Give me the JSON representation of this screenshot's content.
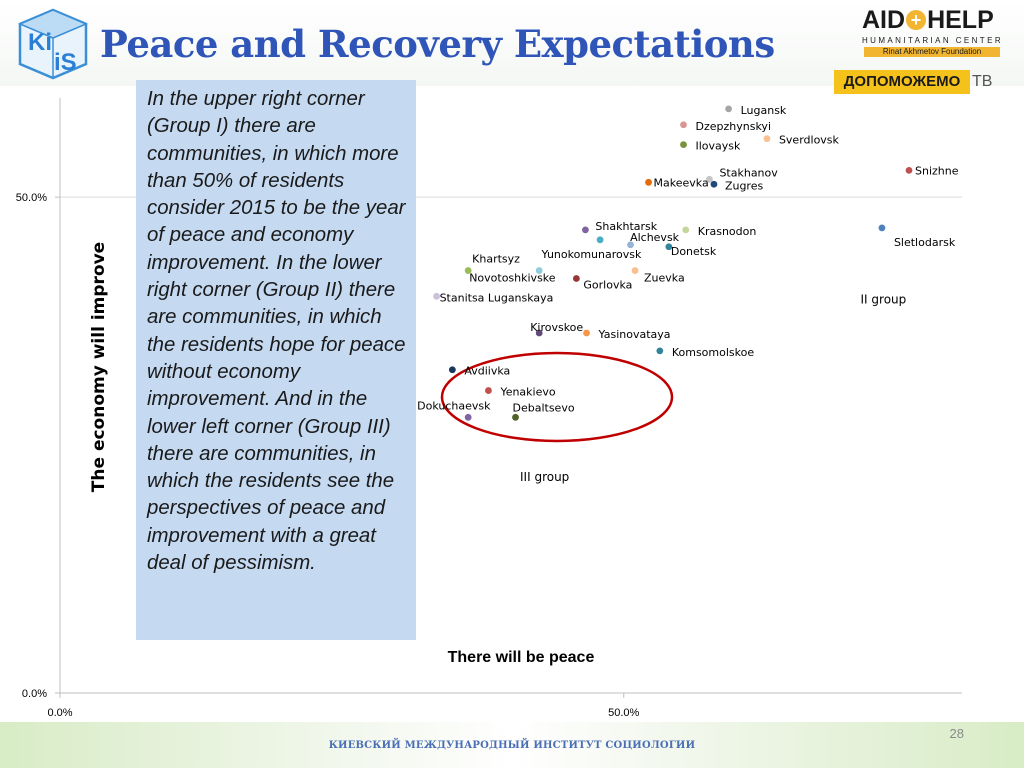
{
  "header": {
    "title": "Peace and Recovery Expectations",
    "kiis_logo_text": "KIIS",
    "aid_logo": {
      "word_left": "AID",
      "word_right": "HELP",
      "subtitle": "HUMANITARIAN CENTER",
      "foundation": "Rinat Akhmetov Foundation"
    },
    "badge": {
      "text": "ДОПОМОЖЕМО",
      "suffix": "ТВ"
    }
  },
  "description": "In the upper right corner (Group I) there are communities, in which more than 50% of residents consider 2015 to be the year of peace and economy improvement. In the lower right corner (Group II) there are communities, in which the residents hope for peace without economy improvement. And in the lower left corner (Group III) there are communities, in which the residents see the perspectives of peace and improvement with a great deal of pessimism.",
  "chart_data": {
    "type": "scatter",
    "xlabel": "There will be peace",
    "ylabel": "The economy will improve",
    "xlim": [
      0,
      0.8
    ],
    "ylim": [
      0,
      0.6
    ],
    "x_ticks": [
      {
        "value": 0.0,
        "label": "0.0%"
      },
      {
        "value": 0.5,
        "label": "50.0%"
      }
    ],
    "y_ticks": [
      {
        "value": 0.0,
        "label": "0.0%"
      },
      {
        "value": 0.5,
        "label": "50.0%"
      }
    ],
    "grid": "horizontal",
    "points": [
      {
        "name": "Lugansk",
        "x": 0.593,
        "y": 0.589,
        "color": "#a6a6a6"
      },
      {
        "name": "Dzepzhynskyi",
        "x": 0.553,
        "y": 0.573,
        "color": "#d99694"
      },
      {
        "name": "Ilovaysk",
        "x": 0.553,
        "y": 0.553,
        "color": "#77933c"
      },
      {
        "name": "Sverdlovsk",
        "x": 0.627,
        "y": 0.559,
        "color": "#fac090"
      },
      {
        "name": "Snizhne",
        "x": 0.753,
        "y": 0.527,
        "color": "#c0504d"
      },
      {
        "name": "Stakhanov",
        "x": 0.576,
        "y": 0.518,
        "color": "#c6c6c6"
      },
      {
        "name": "Makeevka",
        "x": 0.522,
        "y": 0.515,
        "color": "#e46c0a"
      },
      {
        "name": "Zugres",
        "x": 0.58,
        "y": 0.513,
        "color": "#1f497d"
      },
      {
        "name": "Shakhtarsk",
        "x": 0.466,
        "y": 0.467,
        "color": "#8064a2"
      },
      {
        "name": "Alchevsk",
        "x": 0.479,
        "y": 0.457,
        "color": "#4bacc6"
      },
      {
        "name": "Krasnodon",
        "x": 0.555,
        "y": 0.467,
        "color": "#c3d69b"
      },
      {
        "name": "Sletlodarsk",
        "x": 0.729,
        "y": 0.469,
        "color": "#4f81bd"
      },
      {
        "name": "Donetsk",
        "x": 0.54,
        "y": 0.45,
        "color": "#31859c"
      },
      {
        "name": "Yunokomunarovsk",
        "x": 0.506,
        "y": 0.452,
        "color": "#95b3d7"
      },
      {
        "name": "Khartsyz",
        "x": 0.362,
        "y": 0.426,
        "color": "#9bbb59"
      },
      {
        "name": "Novotoshkivske",
        "x": 0.425,
        "y": 0.426,
        "color": "#92cddc"
      },
      {
        "name": "Gorlovka",
        "x": 0.458,
        "y": 0.418,
        "color": "#953735"
      },
      {
        "name": "Zuevka",
        "x": 0.51,
        "y": 0.426,
        "color": "#fac090"
      },
      {
        "name": "Stanitsa Luganskaya",
        "x": 0.334,
        "y": 0.4,
        "color": "#ccc1da"
      },
      {
        "name": "Kirovskoe",
        "x": 0.425,
        "y": 0.363,
        "color": "#604a7b"
      },
      {
        "name": "Yasinovataya",
        "x": 0.467,
        "y": 0.363,
        "color": "#f79646"
      },
      {
        "name": "Komsomolskoe",
        "x": 0.532,
        "y": 0.345,
        "color": "#31849b"
      },
      {
        "name": "Avdiivka",
        "x": 0.348,
        "y": 0.326,
        "color": "#17375e"
      },
      {
        "name": "Yenakievo",
        "x": 0.38,
        "y": 0.305,
        "color": "#c0504d"
      },
      {
        "name": "Dokuchaevsk",
        "x": 0.362,
        "y": 0.278,
        "color": "#8064a2"
      },
      {
        "name": "Debaltsevo",
        "x": 0.404,
        "y": 0.278,
        "color": "#4f6228"
      }
    ],
    "annotations": [
      {
        "text": "II group",
        "x": 0.71,
        "y": 0.393
      },
      {
        "text": "III group",
        "x": 0.408,
        "y": 0.214
      }
    ]
  },
  "footer": {
    "institute": "КИЕВСКИЙ МЕЖДУНАРОДНЫЙ ИНСТИТУТ СОЦИОЛОГИИ",
    "page_number": "28"
  }
}
